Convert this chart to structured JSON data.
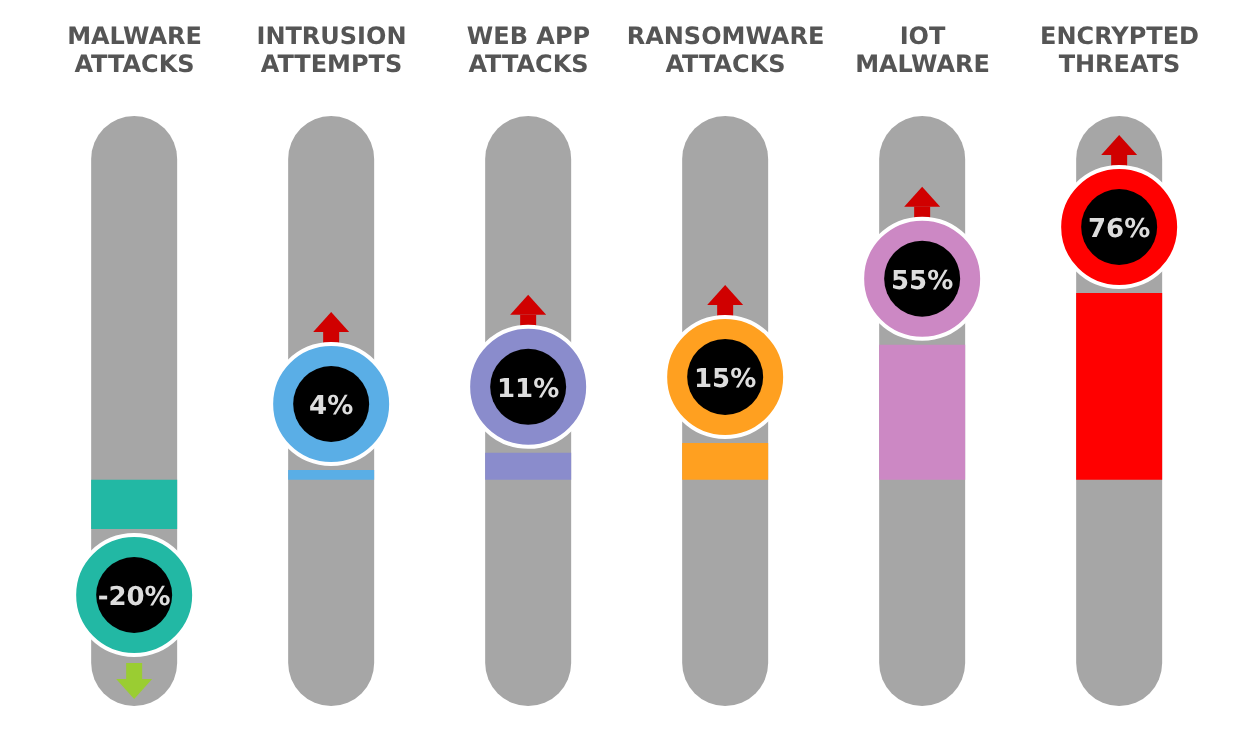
{
  "chart_data": {
    "type": "bar",
    "categories": [
      "MALWARE ATTACKS",
      "INTRUSION ATTEMPTS",
      "WEB APP ATTACKS",
      "RANSOMWARE ATTACKS",
      "IOT MALWARE",
      "ENCRYPTED THREATS"
    ],
    "values": [
      -20,
      4,
      11,
      15,
      55,
      76
    ],
    "colors": [
      "#22b8a4",
      "#5aaee6",
      "#8a8ccc",
      "#ffa020",
      "#cc88c4",
      "#ff0000"
    ],
    "value_labels": [
      "-20%",
      "4%",
      "11%",
      "15%",
      "55%",
      "76%"
    ],
    "grid": false,
    "legend": false
  }
}
